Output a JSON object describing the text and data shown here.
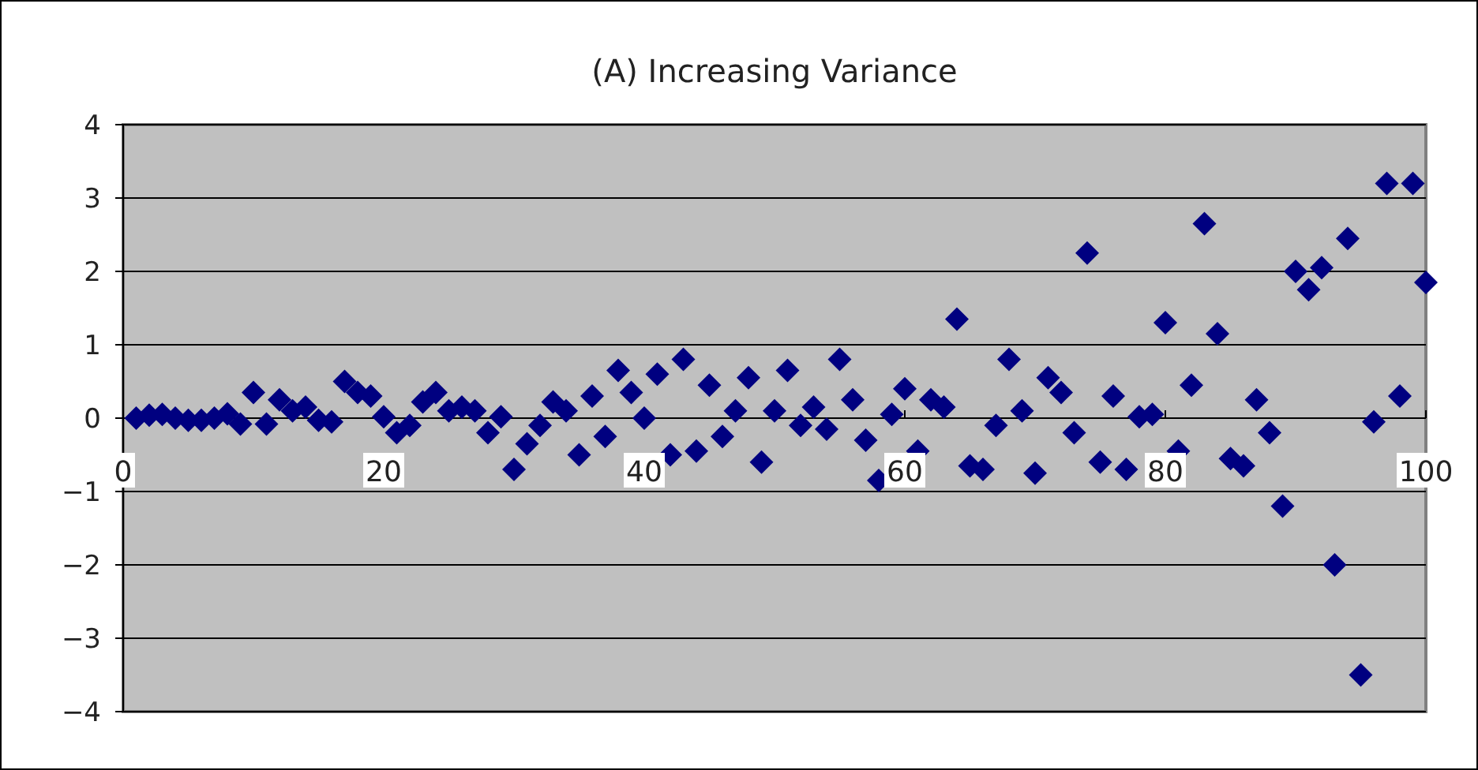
{
  "chart_data": {
    "type": "scatter",
    "title": "(A) Increasing Variance",
    "x": [
      1,
      2,
      3,
      4,
      5,
      6,
      7,
      8,
      9,
      10,
      11,
      12,
      13,
      14,
      15,
      16,
      17,
      18,
      19,
      20,
      21,
      22,
      23,
      24,
      25,
      26,
      27,
      28,
      29,
      30,
      31,
      32,
      33,
      34,
      35,
      36,
      37,
      38,
      39,
      40,
      41,
      42,
      43,
      44,
      45,
      46,
      47,
      48,
      49,
      50,
      51,
      52,
      53,
      54,
      55,
      56,
      57,
      58,
      59,
      60,
      61,
      62,
      63,
      64,
      65,
      66,
      67,
      68,
      69,
      70,
      71,
      72,
      73,
      74,
      75,
      76,
      77,
      78,
      79,
      80,
      81,
      82,
      83,
      84,
      85,
      86,
      87,
      88,
      89,
      90,
      91,
      92,
      93,
      94,
      95,
      96,
      97,
      98,
      99,
      100
    ],
    "series": [
      {
        "color": "#000080",
        "values": [
          0.0,
          0.04,
          0.05,
          0.0,
          -0.03,
          -0.03,
          0.0,
          0.06,
          -0.08,
          0.35,
          -0.08,
          0.25,
          0.1,
          0.15,
          -0.03,
          -0.05,
          0.5,
          0.35,
          0.3,
          0.02,
          -0.2,
          -0.1,
          0.22,
          0.35,
          0.1,
          0.15,
          0.1,
          -0.2,
          0.02,
          -0.7,
          -0.35,
          -0.1,
          0.22,
          0.1,
          -0.5,
          0.3,
          -0.25,
          0.65,
          0.35,
          0.0,
          0.6,
          -0.5,
          0.8,
          -0.45,
          0.45,
          -0.25,
          0.1,
          0.55,
          -0.6,
          0.1,
          0.65,
          -0.1,
          0.15,
          -0.15,
          0.8,
          0.25,
          -0.3,
          -0.85,
          0.05,
          0.4,
          -0.45,
          0.25,
          0.15,
          1.35,
          -0.65,
          -0.7,
          -0.1,
          0.8,
          0.1,
          -0.75,
          0.55,
          0.35,
          -0.2,
          2.25,
          -0.6,
          0.3,
          -0.7,
          0.02,
          0.05,
          1.3,
          -0.45,
          0.45,
          2.65,
          1.15,
          -0.55,
          -0.65,
          0.25,
          -0.2,
          -1.2,
          2.0,
          1.75,
          2.05,
          -2.0,
          2.45,
          -3.5,
          -0.05,
          3.2,
          0.3,
          3.2,
          1.85
        ]
      }
    ],
    "xlim": [
      0,
      100
    ],
    "xticks": [
      0,
      20,
      40,
      60,
      80,
      100
    ],
    "ylim": [
      -4,
      4
    ],
    "yticks": [
      {
        "value": -4,
        "label": "−4"
      },
      {
        "value": -3,
        "label": "−3"
      },
      {
        "value": -2,
        "label": "−2"
      },
      {
        "value": -1,
        "label": "−1"
      },
      0,
      1,
      2,
      3,
      4
    ],
    "grid": "y",
    "marker": "diamond"
  }
}
